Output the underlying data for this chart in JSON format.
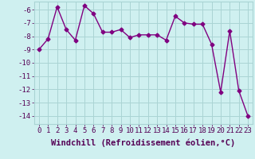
{
  "x": [
    0,
    1,
    2,
    3,
    4,
    5,
    6,
    7,
    8,
    9,
    10,
    11,
    12,
    13,
    14,
    15,
    16,
    17,
    18,
    19,
    20,
    21,
    22,
    23
  ],
  "y": [
    -9.0,
    -8.2,
    -5.8,
    -7.5,
    -8.3,
    -5.7,
    -6.3,
    -7.7,
    -7.7,
    -7.5,
    -8.1,
    -7.9,
    -7.9,
    -7.9,
    -8.3,
    -6.5,
    -7.0,
    -7.1,
    -7.1,
    -8.6,
    -12.2,
    -7.6,
    -12.1,
    -14.0
  ],
  "line_color": "#800080",
  "marker": "D",
  "marker_size": 2.5,
  "linewidth": 1.0,
  "bg_color": "#cff0f0",
  "grid_color": "#aad4d4",
  "xlabel": "Windchill (Refroidissement éolien,°C)",
  "xlabel_fontsize": 7.5,
  "yticks": [
    -6,
    -7,
    -8,
    -9,
    -10,
    -11,
    -12,
    -13,
    -14
  ],
  "xticks": [
    0,
    1,
    2,
    3,
    4,
    5,
    6,
    7,
    8,
    9,
    10,
    11,
    12,
    13,
    14,
    15,
    16,
    17,
    18,
    19,
    20,
    21,
    22,
    23
  ],
  "ylim": [
    -14.6,
    -5.4
  ],
  "xlim": [
    -0.5,
    23.5
  ],
  "tick_fontsize": 6.5
}
